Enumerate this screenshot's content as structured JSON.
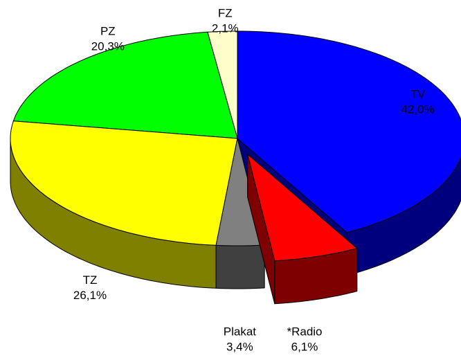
{
  "chart_data": {
    "type": "pie3d",
    "categories": [
      "TV",
      "*Radio",
      "Plakat",
      "TZ",
      "PZ",
      "FZ"
    ],
    "values": [
      42.0,
      6.1,
      3.4,
      26.1,
      20.3,
      2.1
    ],
    "value_labels": [
      "42,0%",
      "6,1%",
      "3,4%",
      "26,1%",
      "20,3%",
      "2,1%"
    ],
    "colors": [
      "#0000ff",
      "#ff0000",
      "#808080",
      "#ffff00",
      "#00ff00",
      "#ffffcc"
    ],
    "exploded": "*Radio"
  }
}
